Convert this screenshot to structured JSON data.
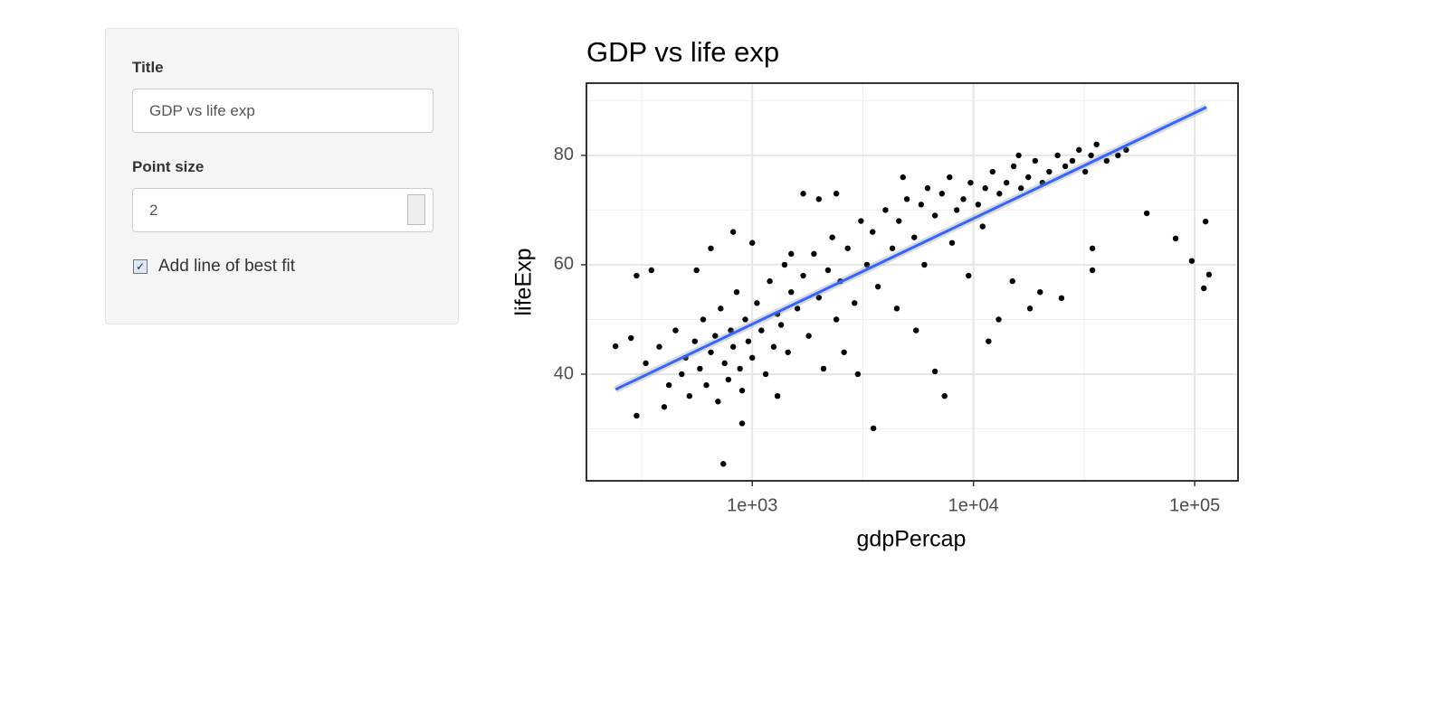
{
  "sidebar": {
    "title_label": "Title",
    "title_value": "GDP vs life exp",
    "point_size_label": "Point size",
    "point_size_value": 2,
    "checkbox_label": "Add line of best fit",
    "checkbox_checked": true
  },
  "chart_data": {
    "type": "scatter",
    "title": "GDP vs life exp",
    "x_label": "gdpPercap",
    "y_label": "lifeExp",
    "xscale": "log",
    "grid": true,
    "xlim": [
      178,
      157000
    ],
    "ylim": [
      20.5,
      93.2
    ],
    "xticks": [
      {
        "value": 1000,
        "label": "1e+03"
      },
      {
        "value": 10000,
        "label": "1e+04"
      },
      {
        "value": 100000,
        "label": "1e+05"
      }
    ],
    "yticks": [
      40,
      60,
      80
    ],
    "points": {
      "color": "#000000",
      "x": [
        330,
        380,
        420,
        450,
        480,
        500,
        520,
        550,
        580,
        600,
        620,
        650,
        680,
        700,
        720,
        750,
        780,
        800,
        820,
        850,
        880,
        900,
        930,
        960,
        1000,
        1050,
        1100,
        1150,
        1200,
        1250,
        1300,
        1350,
        1400,
        1450,
        1500,
        1600,
        1700,
        1800,
        1900,
        2000,
        2100,
        2200,
        2300,
        2400,
        2500,
        2700,
        2900,
        3100,
        3300,
        3500,
        3700,
        4000,
        4300,
        4600,
        5000,
        5400,
        5800,
        6200,
        6700,
        7200,
        7800,
        8400,
        9000,
        9700,
        10500,
        11300,
        12200,
        13100,
        14100,
        15200,
        16400,
        17700,
        19000,
        20500,
        22000,
        24000,
        26000,
        28000,
        30000,
        32000,
        34000,
        36000,
        40000,
        45000,
        49000,
        300,
        350,
        400,
        560,
        650,
        820,
        900,
        1000,
        1300,
        1500,
        2000,
        2600,
        3000,
        4500,
        5500,
        6000,
        8000,
        9500,
        13000,
        15000,
        18000,
        20000,
        2400,
        1700,
        4800,
        11000,
        16000,
        241,
        283,
        300,
        740,
        60700,
        82000,
        97000,
        112000,
        116000,
        110000,
        34500,
        34500,
        3530,
        6700,
        7400,
        11700,
        25000
      ],
      "y": [
        42,
        45,
        38,
        48,
        40,
        43,
        36,
        46,
        41,
        50,
        38,
        44,
        47,
        35,
        52,
        42,
        39,
        48,
        45,
        55,
        41,
        37,
        50,
        46,
        43,
        53,
        48,
        40,
        57,
        45,
        51,
        49,
        60,
        44,
        55,
        52,
        58,
        47,
        62,
        54,
        41,
        59,
        65,
        50,
        57,
        63,
        53,
        68,
        60,
        66,
        56,
        70,
        63,
        68,
        72,
        65,
        71,
        74,
        69,
        73,
        76,
        70,
        72,
        75,
        71,
        74,
        77,
        73,
        75,
        78,
        74,
        76,
        79,
        75,
        77,
        80,
        78,
        79,
        81,
        77,
        80,
        82,
        79,
        80,
        81,
        58,
        59,
        34,
        59,
        63,
        66,
        31,
        64,
        36,
        62,
        72,
        44,
        40,
        52,
        48,
        60,
        64,
        58,
        50,
        57,
        52,
        55,
        73,
        73,
        76,
        67,
        80,
        45.1,
        46.6,
        32.4,
        23.6,
        69.4,
        64.8,
        60.7,
        67.9,
        58.2,
        55.7,
        63,
        59,
        30.1,
        40.5,
        36,
        46,
        53.9
      ]
    },
    "fit_line": {
      "color": "#3366ff",
      "x": [
        241,
        113000
      ],
      "y": [
        37.2,
        88.8
      ]
    }
  }
}
